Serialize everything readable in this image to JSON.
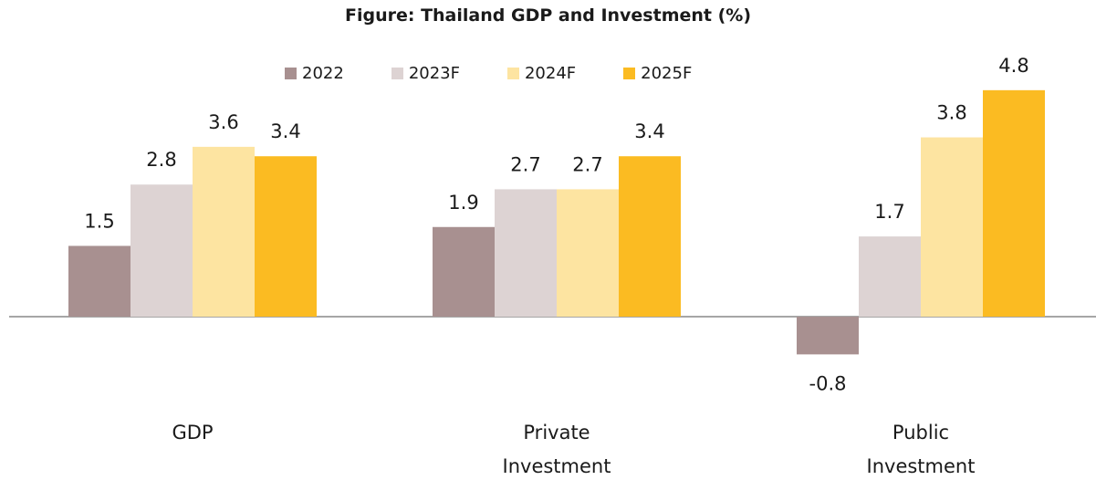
{
  "chart_data": {
    "type": "bar",
    "title": "Figure: Thailand GDP and Investment (%)",
    "categories": [
      "GDP",
      "Private Investment",
      "Public Investment"
    ],
    "category_lines": [
      [
        "GDP"
      ],
      [
        "Private",
        "Investment"
      ],
      [
        "Public",
        "Investment"
      ]
    ],
    "series": [
      {
        "name": "2022",
        "color": "#a89090",
        "values": [
          1.5,
          1.9,
          -0.8
        ]
      },
      {
        "name": "2023F",
        "color": "#ddd3d3",
        "values": [
          2.8,
          2.7,
          1.7
        ]
      },
      {
        "name": "2024F",
        "color": "#fde4a1",
        "values": [
          3.6,
          2.7,
          3.8
        ]
      },
      {
        "name": "2025F",
        "color": "#fbbb22",
        "values": [
          3.4,
          3.4,
          4.8
        ]
      }
    ],
    "xlabel": "",
    "ylabel": "",
    "ylim": [
      -1.5,
      5
    ],
    "grid": false,
    "legend_position": "top"
  }
}
